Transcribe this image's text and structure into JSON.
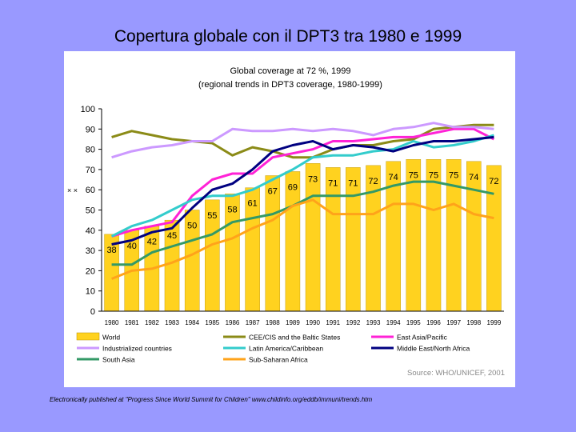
{
  "slide": {
    "title": "Copertura globale con il DPT3 tra 1980 e 1999",
    "footer": "Electronically published at \"Progress Since World Summit for Children\" www.childinfo.org/eddb/immuni/trends.htm"
  },
  "chart_data": {
    "type": "bar+line",
    "title": "Global coverage at 72 %, 1999",
    "subtitle": "(regional trends in DPT3 coverage, 1980-1999)",
    "source": "Source: WHO/UNICEF, 2001",
    "ylim": [
      0,
      100
    ],
    "yticks": [
      0,
      10,
      20,
      30,
      40,
      50,
      60,
      70,
      80,
      90,
      100
    ],
    "stray_marks": "× ×",
    "categories": [
      "1980",
      "1981",
      "1982",
      "1983",
      "1984",
      "1985",
      "1986",
      "1987",
      "1988",
      "1989",
      "1990",
      "1991",
      "1992",
      "1993",
      "1994",
      "1995",
      "1996",
      "1997",
      "1998",
      "1999"
    ],
    "bars": {
      "name": "World",
      "color": "#ffd21f",
      "values": [
        38,
        40,
        42,
        45,
        50,
        55,
        58,
        61,
        67,
        69,
        73,
        71,
        71,
        72,
        74,
        75,
        75,
        75,
        74,
        72
      ]
    },
    "series": [
      {
        "name": "CEE/CIS and the Baltic States",
        "color": "#8b8b17",
        "values": [
          86,
          89,
          87,
          85,
          84,
          83,
          77,
          81,
          79,
          76,
          76,
          80,
          82,
          82,
          84,
          85,
          90,
          91,
          92,
          92
        ]
      },
      {
        "name": "East Asia/Pacific",
        "color": "#ff22d6",
        "values": [
          37,
          40,
          42,
          44,
          57,
          65,
          68,
          68,
          76,
          78,
          80,
          84,
          84,
          85,
          86,
          86,
          88,
          90,
          90,
          85
        ]
      },
      {
        "name": "Industrialized countries",
        "color": "#cc99ff",
        "values": [
          76,
          79,
          81,
          82,
          84,
          84,
          90,
          89,
          89,
          90,
          89,
          90,
          89,
          87,
          90,
          91,
          93,
          91,
          91,
          90
        ]
      },
      {
        "name": "Latin America/Caribbean",
        "color": "#33cccc",
        "values": [
          37,
          42,
          45,
          50,
          55,
          57,
          57,
          60,
          65,
          70,
          76,
          77,
          77,
          79,
          80,
          84,
          81,
          82,
          84,
          87
        ]
      },
      {
        "name": "Middle East/North Africa",
        "color": "#000080",
        "values": [
          33,
          35,
          39,
          41,
          51,
          60,
          63,
          70,
          79,
          82,
          84,
          80,
          82,
          81,
          79,
          82,
          84,
          84,
          85,
          86
        ]
      },
      {
        "name": "South Asia",
        "color": "#339966",
        "values": [
          23,
          23,
          29,
          32,
          35,
          38,
          44,
          46,
          48,
          52,
          57,
          57,
          57,
          59,
          62,
          64,
          64,
          62,
          60,
          58
        ]
      },
      {
        "name": "Sub-Saharan Africa",
        "color": "#ffa31a",
        "values": [
          16,
          20,
          21,
          24,
          28,
          33,
          36,
          41,
          45,
          52,
          55,
          48,
          48,
          48,
          53,
          53,
          50,
          53,
          48,
          46
        ]
      }
    ]
  }
}
